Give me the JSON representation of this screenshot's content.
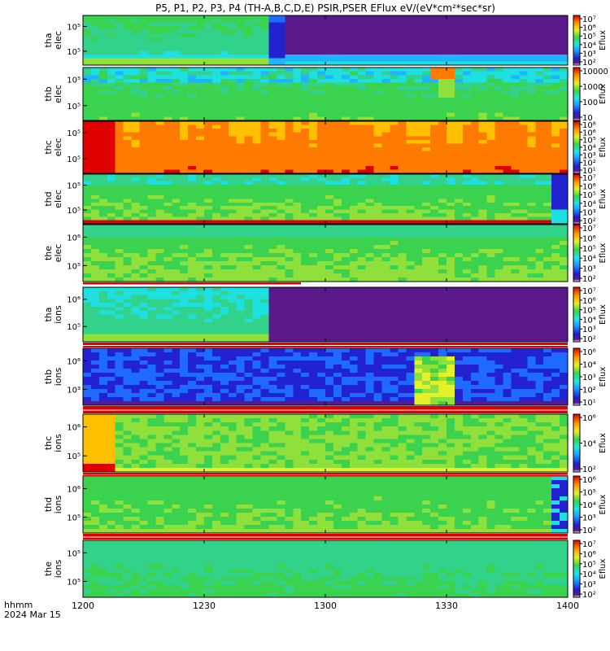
{
  "title": "P5, P1, P2, P3, P4 (TH-A,B,C,D,E) PSIR,PSER EFlux eV/(eV*cm²*sec*sr)",
  "time_label_1": "hhmm",
  "time_label_2": "2024 Mar 15",
  "chart_data": {
    "type": "heatmap",
    "x_ticks": [
      "1200",
      "1230",
      "1300",
      "1330",
      "1400"
    ],
    "x_range": [
      "1200",
      "1400"
    ],
    "colorbar_label": "Eflux",
    "panels": [
      {
        "label1": "tha",
        "label2": "elec",
        "yticks": [
          "10⁵",
          "10⁵"
        ],
        "cbar_ticks": [
          "10⁷",
          "10⁶",
          "10⁵",
          "10⁴",
          "10³",
          "10²"
        ],
        "style": "tha_elec"
      },
      {
        "label1": "thb",
        "label2": "elec",
        "yticks": [
          "10⁵",
          "10⁵"
        ],
        "cbar_ticks": [
          "10000",
          "1000",
          "100",
          "10"
        ],
        "style": "thb_elec"
      },
      {
        "label1": "thc",
        "label2": "elec",
        "yticks": [
          "10⁵",
          "10⁵"
        ],
        "cbar_ticks": [
          "10⁸",
          "10⁶",
          "10⁵",
          "10⁴",
          "10³",
          "10²",
          "10¹"
        ],
        "style": "thc_elec"
      },
      {
        "label1": "thd",
        "label2": "elec",
        "yticks": [
          "10⁵",
          "10⁵"
        ],
        "cbar_ticks": [
          "10⁷",
          "10⁶",
          "10⁵",
          "10⁴",
          "10³",
          "10²"
        ],
        "style": "thd_elec"
      },
      {
        "label1": "the",
        "label2": "elec",
        "yticks": [
          "10⁶",
          "10⁵"
        ],
        "cbar_ticks": [
          "10⁷",
          "10⁶",
          "10⁵",
          "10⁴",
          "10³",
          "10²"
        ],
        "style": "the_elec"
      },
      {
        "label1": "tha",
        "label2": "ions",
        "yticks": [
          "10⁶",
          "10⁵"
        ],
        "cbar_ticks": [
          "10⁷",
          "10⁶",
          "10⁵",
          "10⁴",
          "10³",
          "10²"
        ],
        "style": "tha_ions"
      },
      {
        "label1": "thb",
        "label2": "ions",
        "yticks": [
          "10⁶",
          "10³"
        ],
        "cbar_ticks": [
          "10⁶",
          "10⁴",
          "10³",
          "10²",
          "10¹"
        ],
        "style": "thb_ions"
      },
      {
        "label1": "thc",
        "label2": "ions",
        "yticks": [
          "10⁶",
          "10⁵"
        ],
        "cbar_ticks": [
          "10⁶",
          "10⁴",
          "10²"
        ],
        "style": "thc_ions"
      },
      {
        "label1": "thd",
        "label2": "ions",
        "yticks": [
          "10⁶",
          "10⁵"
        ],
        "cbar_ticks": [
          "10⁶",
          "10⁵",
          "10⁴",
          "10³",
          "10²"
        ],
        "style": "thd_ions"
      },
      {
        "label1": "the",
        "label2": "ions",
        "yticks": [
          "10⁵",
          "10⁵"
        ],
        "cbar_ticks": [
          "10⁷",
          "10⁶",
          "10⁵",
          "10⁴",
          "10³",
          "10²"
        ],
        "style": "the_ions"
      }
    ]
  }
}
